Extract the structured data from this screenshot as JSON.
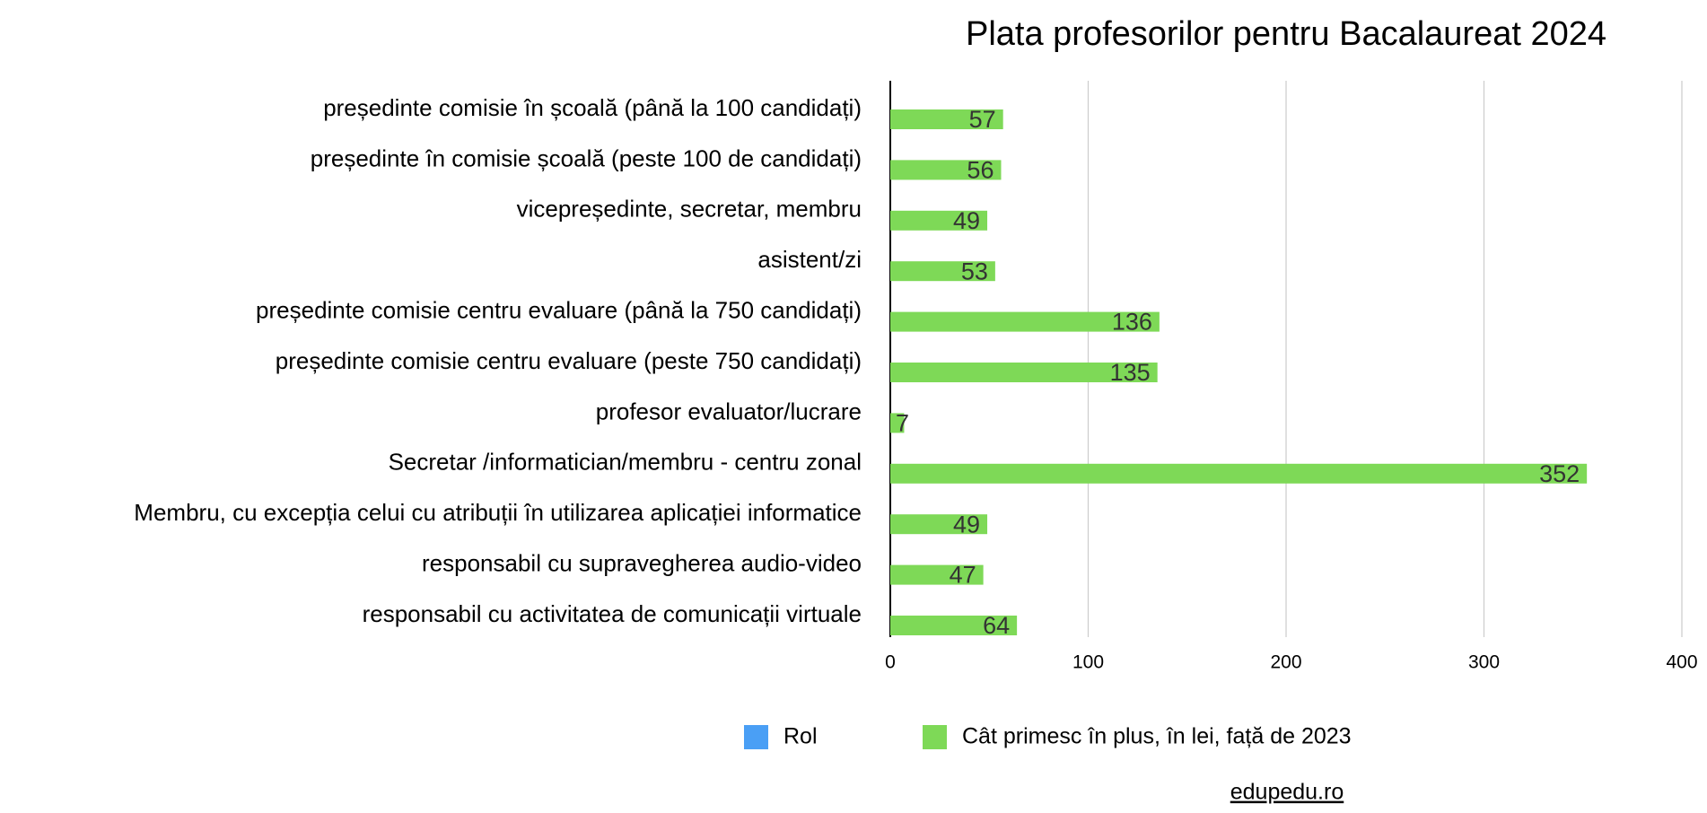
{
  "chart_data": {
    "type": "bar",
    "orientation": "horizontal",
    "title": "Plata profesorilor pentru Bacalaureat 2024",
    "categories": [
      "președinte comisie în școală (până la 100 candidați)",
      "președinte în comisie școală (peste 100 de candidați)",
      "vicepreședinte, secretar, membru",
      "asistent/zi",
      "președinte comisie centru evaluare (până la 750 candidați)",
      "președinte comisie centru evaluare (peste 750 candidați)",
      "profesor evaluator/lucrare",
      "Secretar /informatician/membru - centru zonal",
      "Membru, cu excepția celui cu atribuții în utilizarea aplicației informatice",
      "responsabil cu supravegherea audio-video",
      "responsabil cu activitatea de comunicații virtuale"
    ],
    "series": [
      {
        "name": "Rol",
        "color": "#4a9ff5",
        "values": [
          null,
          null,
          null,
          null,
          null,
          null,
          null,
          null,
          null,
          null,
          null
        ]
      },
      {
        "name": "Cât primesc în plus, în lei, față de 2023",
        "color": "#7ed957",
        "values": [
          57,
          56,
          49,
          53,
          136,
          135,
          7,
          352,
          49,
          47,
          64
        ]
      }
    ],
    "xlim": [
      0,
      400
    ],
    "xticks": [
      0,
      100,
      200,
      300,
      400
    ],
    "grid": true,
    "legend": "bottom",
    "source": "edupedu.ro"
  }
}
